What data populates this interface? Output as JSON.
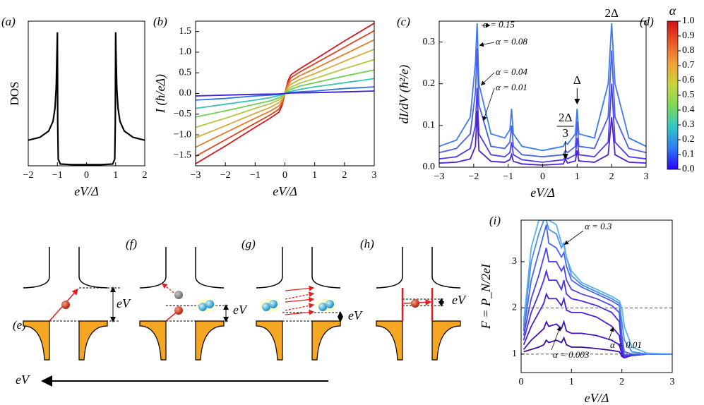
{
  "chart_data": [
    {
      "type": "line",
      "panel_label": "(a)",
      "xlabel": "eV/Δ",
      "ylabel": "DOS",
      "xlim": [
        -2,
        2
      ],
      "xticks": [
        {
          "value": -2,
          "label": "−2"
        },
        {
          "value": -1,
          "label": "−1"
        },
        0,
        1,
        2
      ],
      "ylim": [
        0,
        6.5
      ],
      "x": [
        -2,
        -1.6,
        -1.3,
        -1.15,
        -1.08,
        -1.04,
        -1.01,
        -1.0,
        -0.99,
        -0.97,
        -0.9,
        -0.5,
        0,
        0.5,
        0.9,
        0.97,
        0.99,
        1.0,
        1.01,
        1.04,
        1.08,
        1.15,
        1.3,
        1.6,
        2
      ],
      "series": [
        {
          "color": "#000000",
          "values": [
            1.15,
            1.28,
            1.56,
            2.0,
            2.6,
            3.5,
            5.2,
            6.0,
            2.0,
            0.3,
            0.08,
            0.05,
            0.05,
            0.05,
            0.08,
            0.3,
            2.0,
            6.0,
            5.2,
            3.5,
            2.6,
            2.0,
            1.56,
            1.28,
            1.15
          ]
        }
      ]
    },
    {
      "type": "line",
      "panel_label": "(b)",
      "xlabel": "eV/Δ",
      "ylabel": "I (ħ/eΔ)",
      "xlim": [
        -3,
        3
      ],
      "xticks": [
        {
          "value": -3,
          "label": "−3"
        },
        {
          "value": -2,
          "label": "−2"
        },
        {
          "value": -1,
          "label": "−1"
        },
        0,
        1,
        2,
        3
      ],
      "ylim": [
        -1.75,
        1.75
      ],
      "yticks": [
        {
          "value": -1.5,
          "label": "−1.5"
        },
        {
          "value": -1,
          "label": "−1.0"
        },
        {
          "value": -0.5,
          "label": "−0.5"
        },
        {
          "value": 0,
          "label": "0.0"
        },
        0.5,
        {
          "value": 1,
          "label": "1.0"
        },
        1.5
      ],
      "x": [
        -3,
        -2,
        -1,
        -0.5,
        -0.2,
        -0.1,
        0,
        0.1,
        0.2,
        0.5,
        1,
        2,
        3
      ],
      "series": [
        {
          "color": "#d4171c",
          "values": [
            -1.7,
            -1.27,
            -0.82,
            -0.6,
            -0.45,
            -0.3,
            0,
            0.3,
            0.45,
            0.6,
            0.82,
            1.27,
            1.7
          ]
        },
        {
          "color": "#e0401d",
          "values": [
            -1.52,
            -1.12,
            -0.72,
            -0.52,
            -0.38,
            -0.25,
            0,
            0.25,
            0.38,
            0.52,
            0.72,
            1.12,
            1.52
          ]
        },
        {
          "color": "#e87a25",
          "values": [
            -1.3,
            -0.95,
            -0.6,
            -0.43,
            -0.3,
            -0.2,
            0,
            0.2,
            0.3,
            0.43,
            0.6,
            0.95,
            1.3
          ]
        },
        {
          "color": "#d6a93a",
          "values": [
            -1.07,
            -0.78,
            -0.48,
            -0.34,
            -0.22,
            -0.15,
            0,
            0.15,
            0.22,
            0.34,
            0.48,
            0.78,
            1.07
          ]
        },
        {
          "color": "#b6c544",
          "values": [
            -0.82,
            -0.6,
            -0.36,
            -0.25,
            -0.15,
            -0.1,
            0,
            0.1,
            0.15,
            0.25,
            0.36,
            0.6,
            0.82
          ]
        },
        {
          "color": "#6fcf54",
          "values": [
            -0.57,
            -0.42,
            -0.26,
            -0.18,
            -0.1,
            -0.06,
            0,
            0.06,
            0.1,
            0.18,
            0.26,
            0.42,
            0.57
          ]
        },
        {
          "color": "#3cc1b5",
          "values": [
            -0.36,
            -0.26,
            -0.16,
            -0.1,
            -0.05,
            -0.03,
            0,
            0.03,
            0.05,
            0.1,
            0.16,
            0.26,
            0.36
          ]
        },
        {
          "color": "#2f6fe0",
          "values": [
            -0.16,
            -0.12,
            -0.06,
            -0.04,
            -0.02,
            -0.01,
            0,
            0.01,
            0.02,
            0.04,
            0.06,
            0.12,
            0.16
          ]
        },
        {
          "color": "#3b1fe0",
          "values": [
            -0.06,
            -0.04,
            -0.02,
            -0.015,
            -0.01,
            -0.005,
            0,
            0.005,
            0.01,
            0.015,
            0.02,
            0.04,
            0.06
          ]
        }
      ]
    },
    {
      "type": "line",
      "panel_label": "(c)",
      "xlabel": "eV/Δ",
      "ylabel": "dI/dV (ħ²/e)",
      "xlim": [
        -3,
        3
      ],
      "xticks": [
        {
          "value": -3,
          "label": "−3"
        },
        {
          "value": -2,
          "label": "−2"
        },
        {
          "value": -1,
          "label": "−1"
        },
        0,
        1,
        2,
        3
      ],
      "ylim": [
        0,
        0.35
      ],
      "yticks": [
        {
          "value": 0,
          "label": "0.0"
        },
        0.1,
        0.2,
        0.3
      ],
      "annotations": [
        "α = 0.15",
        "α = 0.08",
        "α = 0.04",
        "α = 0.01",
        "2Δ",
        "Δ"
      ],
      "fraction_annotation": {
        "numerator": "2Δ",
        "denominator": "3"
      },
      "x": [
        -3,
        -2.5,
        -2.1,
        -1.95,
        -1.9,
        -1.85,
        -1.5,
        -1.1,
        -0.95,
        -0.9,
        -0.85,
        -0.6,
        0,
        0.6,
        0.66,
        0.72,
        0.95,
        1,
        1.05,
        1.5,
        1.9,
        2,
        2.1,
        2.5,
        3
      ],
      "series": [
        {
          "color": "#3d7af0",
          "values": [
            0.05,
            0.065,
            0.12,
            0.25,
            0.345,
            0.2,
            0.08,
            0.07,
            0.09,
            0.14,
            0.08,
            0.05,
            0.04,
            0.05,
            0.06,
            0.055,
            0.08,
            0.14,
            0.08,
            0.07,
            0.2,
            0.345,
            0.2,
            0.07,
            0.05
          ]
        },
        {
          "color": "#4a5ef0",
          "values": [
            0.035,
            0.045,
            0.08,
            0.18,
            0.285,
            0.15,
            0.05,
            0.045,
            0.06,
            0.1,
            0.05,
            0.03,
            0.025,
            0.03,
            0.04,
            0.035,
            0.05,
            0.11,
            0.05,
            0.045,
            0.12,
            0.28,
            0.12,
            0.045,
            0.035
          ]
        },
        {
          "color": "#4a3ee8",
          "values": [
            0.02,
            0.025,
            0.045,
            0.1,
            0.19,
            0.08,
            0.03,
            0.025,
            0.035,
            0.06,
            0.03,
            0.018,
            0.012,
            0.018,
            0.025,
            0.02,
            0.03,
            0.07,
            0.03,
            0.025,
            0.06,
            0.2,
            0.06,
            0.025,
            0.02
          ]
        },
        {
          "color": "#5020d0",
          "values": [
            0.01,
            0.012,
            0.02,
            0.05,
            0.135,
            0.04,
            0.014,
            0.012,
            0.018,
            0.03,
            0.014,
            0.008,
            0.005,
            0.008,
            0.02,
            0.01,
            0.015,
            0.04,
            0.015,
            0.012,
            0.03,
            0.12,
            0.03,
            0.012,
            0.01
          ]
        }
      ]
    },
    {
      "type": "line",
      "panel_label": "(i)",
      "xlabel": "eV/Δ",
      "ylabel": "F = P_N/2eI",
      "xlim": [
        0,
        3
      ],
      "xticks": [
        0,
        1,
        2,
        3
      ],
      "ylim": [
        0.6,
        3.9
      ],
      "yticks": [
        1,
        2,
        3
      ],
      "hlines": [
        1,
        2
      ],
      "annotations": [
        "α = 0.3",
        "α = 0.01",
        "α = 0.003"
      ],
      "x": [
        0.05,
        0.2,
        0.35,
        0.45,
        0.5,
        0.55,
        0.7,
        0.8,
        0.85,
        0.9,
        1.0,
        1.2,
        1.5,
        1.8,
        1.95,
        2.0,
        2.05,
        2.2,
        2.5,
        3
      ],
      "series": [
        {
          "color": "#3a0ca0",
          "values": [
            1.05,
            1.1,
            1.15,
            1.2,
            1.3,
            1.25,
            1.3,
            1.25,
            1.35,
            1.2,
            1.15,
            1.15,
            1.12,
            1.08,
            1.05,
            0.95,
            0.92,
            0.97,
            1,
            1
          ]
        },
        {
          "color": "#4313c0",
          "values": [
            1.1,
            1.3,
            1.45,
            1.55,
            1.7,
            1.6,
            1.65,
            1.55,
            1.7,
            1.5,
            1.45,
            1.45,
            1.4,
            1.3,
            1.2,
            1.0,
            0.92,
            0.97,
            1,
            1
          ]
        },
        {
          "color": "#4a1ed6",
          "values": [
            1.2,
            1.6,
            1.9,
            2.1,
            2.3,
            2.2,
            2.2,
            2.05,
            2.2,
            1.95,
            1.9,
            1.9,
            1.8,
            1.6,
            1.4,
            1.05,
            0.93,
            0.97,
            1,
            1
          ]
        },
        {
          "color": "#4b2ee6",
          "values": [
            1.3,
            1.9,
            2.3,
            2.6,
            2.8,
            2.6,
            2.6,
            2.4,
            2.6,
            2.3,
            2.2,
            2.15,
            2.05,
            1.9,
            1.7,
            1.1,
            0.95,
            0.98,
            1,
            1
          ]
        },
        {
          "color": "#4a44ec",
          "values": [
            1.4,
            2.2,
            2.7,
            3.1,
            3.3,
            3.0,
            3.0,
            2.8,
            2.9,
            2.6,
            2.4,
            2.3,
            2.2,
            2.05,
            1.9,
            1.2,
            0.97,
            0.99,
            1,
            1
          ]
        },
        {
          "color": "#4766ee",
          "values": [
            1.5,
            2.6,
            3.2,
            3.6,
            3.8,
            3.4,
            3.3,
            3.1,
            3.2,
            2.9,
            2.6,
            2.45,
            2.3,
            2.15,
            2.05,
            1.4,
            1.05,
            1,
            1,
            1
          ]
        },
        {
          "color": "#4a8eee",
          "values": [
            1.6,
            3.0,
            3.6,
            3.9,
            3.9,
            3.7,
            3.6,
            3.3,
            3.4,
            3.1,
            2.7,
            2.5,
            2.35,
            2.2,
            2.1,
            1.7,
            1.3,
            1.05,
            1,
            1
          ]
        },
        {
          "color": "#5ab0ef",
          "values": [
            1.7,
            3.3,
            3.9,
            3.9,
            3.9,
            3.9,
            3.8,
            3.4,
            3.35,
            3.1,
            2.8,
            2.55,
            2.4,
            2.25,
            2.15,
            2.0,
            1.6,
            1.15,
            1.02,
            1
          ]
        }
      ]
    }
  ],
  "colorbar": {
    "panel_label": "(d)",
    "title": "α",
    "clim": [
      0,
      1
    ],
    "colors": [
      "#2a00ff",
      "#2d7bf5",
      "#34c7c7",
      "#7ed957",
      "#c9d43c",
      "#f0a23a",
      "#e85a2a",
      "#d40f17"
    ],
    "ticks": [
      {
        "value": 0,
        "label": "0.0"
      },
      0.1,
      0.2,
      0.3,
      0.4,
      0.5,
      0.6,
      0.7,
      0.8,
      0.9,
      {
        "value": 1,
        "label": "1.0"
      }
    ]
  },
  "diagrams": [
    {
      "label": "(e)",
      "energy_label": "eV"
    },
    {
      "label": "(f)",
      "energy_label": "eV"
    },
    {
      "label": "(g)",
      "energy_label": "eV"
    },
    {
      "label": "(h)",
      "energy_label": "eV"
    }
  ],
  "bias_arrow_label": "eV"
}
